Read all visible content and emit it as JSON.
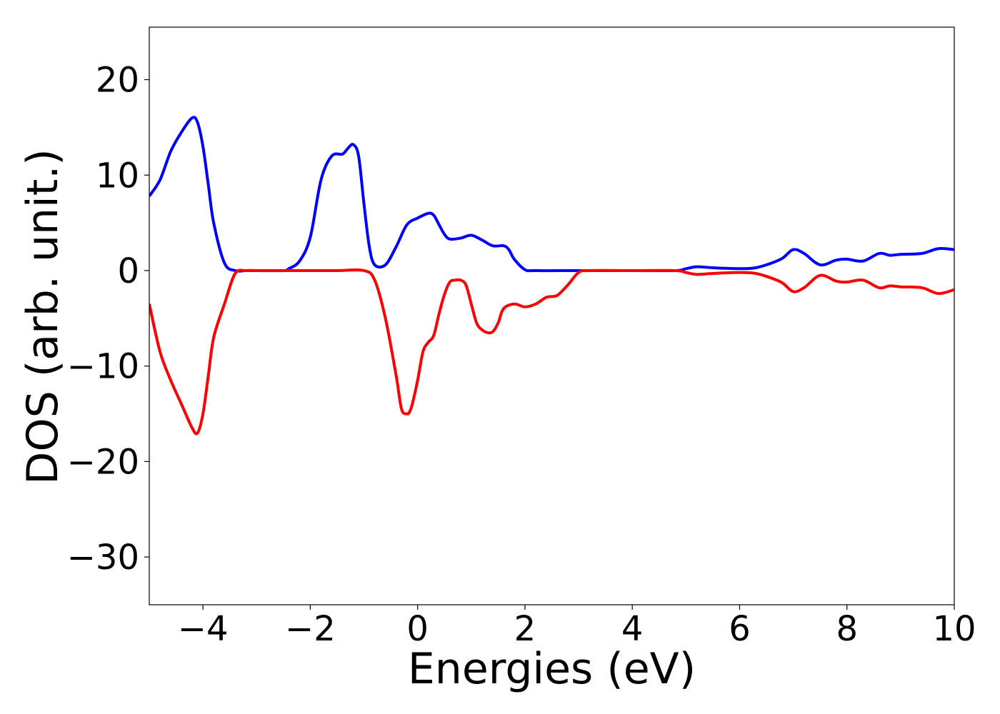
{
  "chart_data": {
    "type": "line",
    "xlabel": "Energies (eV)",
    "ylabel": "DOS (arb. unit.)",
    "xlim": [
      -5,
      10
    ],
    "ylim": [
      -35,
      25.5
    ],
    "xticks": [
      -4,
      -2,
      0,
      2,
      4,
      6,
      8,
      10
    ],
    "yticks": [
      -30,
      -20,
      -10,
      0,
      10,
      20
    ],
    "xtick_labels": [
      "−4",
      "−2",
      "0",
      "2",
      "4",
      "6",
      "8",
      "10"
    ],
    "ytick_labels": [
      "−30",
      "−20",
      "−10",
      "0",
      "10",
      "20"
    ],
    "grid": false,
    "series": [
      {
        "color": "#0000ff",
        "x": [
          -5.0,
          -4.8,
          -4.6,
          -4.4,
          -4.2,
          -4.1,
          -4.0,
          -3.9,
          -3.8,
          -3.6,
          -3.4,
          -3.2,
          -3.0,
          -2.5,
          -2.4,
          -2.2,
          -2.0,
          -1.8,
          -1.6,
          -1.4,
          -1.3,
          -1.2,
          -1.1,
          -1.0,
          -0.9,
          -0.8,
          -0.6,
          -0.4,
          -0.2,
          0.0,
          0.2,
          0.3,
          0.4,
          0.5,
          0.6,
          0.8,
          1.0,
          1.2,
          1.4,
          1.6,
          1.7,
          1.8,
          2.0,
          2.2,
          3.0,
          4.0,
          4.8,
          5.0,
          5.2,
          5.5,
          6.0,
          6.3,
          6.6,
          6.8,
          7.0,
          7.2,
          7.5,
          7.8,
          8.0,
          8.3,
          8.6,
          8.8,
          9.0,
          9.4,
          9.7,
          10.0
        ],
        "y": [
          7.8,
          9.5,
          12.5,
          14.5,
          16.0,
          15.5,
          13.0,
          9.0,
          5.0,
          0.8,
          0.0,
          0.0,
          0.0,
          0.0,
          0.2,
          1.0,
          3.5,
          9.5,
          12.0,
          12.2,
          12.8,
          13.2,
          12.0,
          7.0,
          2.5,
          0.6,
          0.6,
          2.5,
          4.8,
          5.5,
          6.0,
          5.8,
          4.8,
          3.8,
          3.3,
          3.4,
          3.7,
          3.2,
          2.6,
          2.6,
          2.2,
          1.2,
          0.1,
          0.0,
          0.0,
          0.0,
          0.0,
          0.2,
          0.4,
          0.3,
          0.2,
          0.3,
          0.8,
          1.3,
          2.2,
          1.8,
          0.6,
          1.1,
          1.2,
          1.0,
          1.8,
          1.6,
          1.7,
          1.8,
          2.3,
          2.2
        ]
      },
      {
        "color": "#ff0000",
        "x": [
          -5.0,
          -4.8,
          -4.6,
          -4.4,
          -4.2,
          -4.1,
          -4.0,
          -3.9,
          -3.8,
          -3.6,
          -3.4,
          -3.2,
          -3.0,
          -2.5,
          -2.0,
          -1.5,
          -1.0,
          -0.8,
          -0.6,
          -0.4,
          -0.3,
          -0.2,
          -0.15,
          -0.1,
          0.0,
          0.1,
          0.2,
          0.3,
          0.4,
          0.5,
          0.6,
          0.7,
          0.8,
          0.9,
          1.0,
          1.1,
          1.2,
          1.3,
          1.4,
          1.5,
          1.6,
          1.8,
          2.0,
          2.2,
          2.4,
          2.6,
          2.8,
          3.0,
          3.2,
          4.0,
          4.8,
          5.0,
          5.2,
          5.5,
          6.0,
          6.3,
          6.6,
          6.8,
          7.0,
          7.2,
          7.5,
          7.8,
          8.0,
          8.3,
          8.6,
          8.8,
          9.0,
          9.4,
          9.7,
          10.0
        ],
        "y": [
          -3.5,
          -8.5,
          -11.5,
          -14.0,
          -16.5,
          -17.0,
          -15.0,
          -11.0,
          -7.0,
          -3.5,
          -0.3,
          0.0,
          0.0,
          0.0,
          0.0,
          0.0,
          0.0,
          -1.0,
          -5.0,
          -11.0,
          -14.5,
          -15.0,
          -14.8,
          -14.0,
          -11.5,
          -8.5,
          -7.5,
          -6.8,
          -4.5,
          -2.5,
          -1.2,
          -1.0,
          -1.0,
          -1.5,
          -3.5,
          -5.5,
          -6.2,
          -6.5,
          -6.4,
          -5.5,
          -4.0,
          -3.5,
          -3.8,
          -3.5,
          -2.8,
          -2.6,
          -1.5,
          -0.2,
          0.0,
          0.0,
          0.0,
          -0.2,
          -0.4,
          -0.3,
          -0.2,
          -0.3,
          -0.8,
          -1.3,
          -2.2,
          -1.8,
          -0.5,
          -1.1,
          -1.2,
          -1.0,
          -1.8,
          -1.6,
          -1.7,
          -1.8,
          -2.4,
          -2.0
        ]
      }
    ]
  }
}
